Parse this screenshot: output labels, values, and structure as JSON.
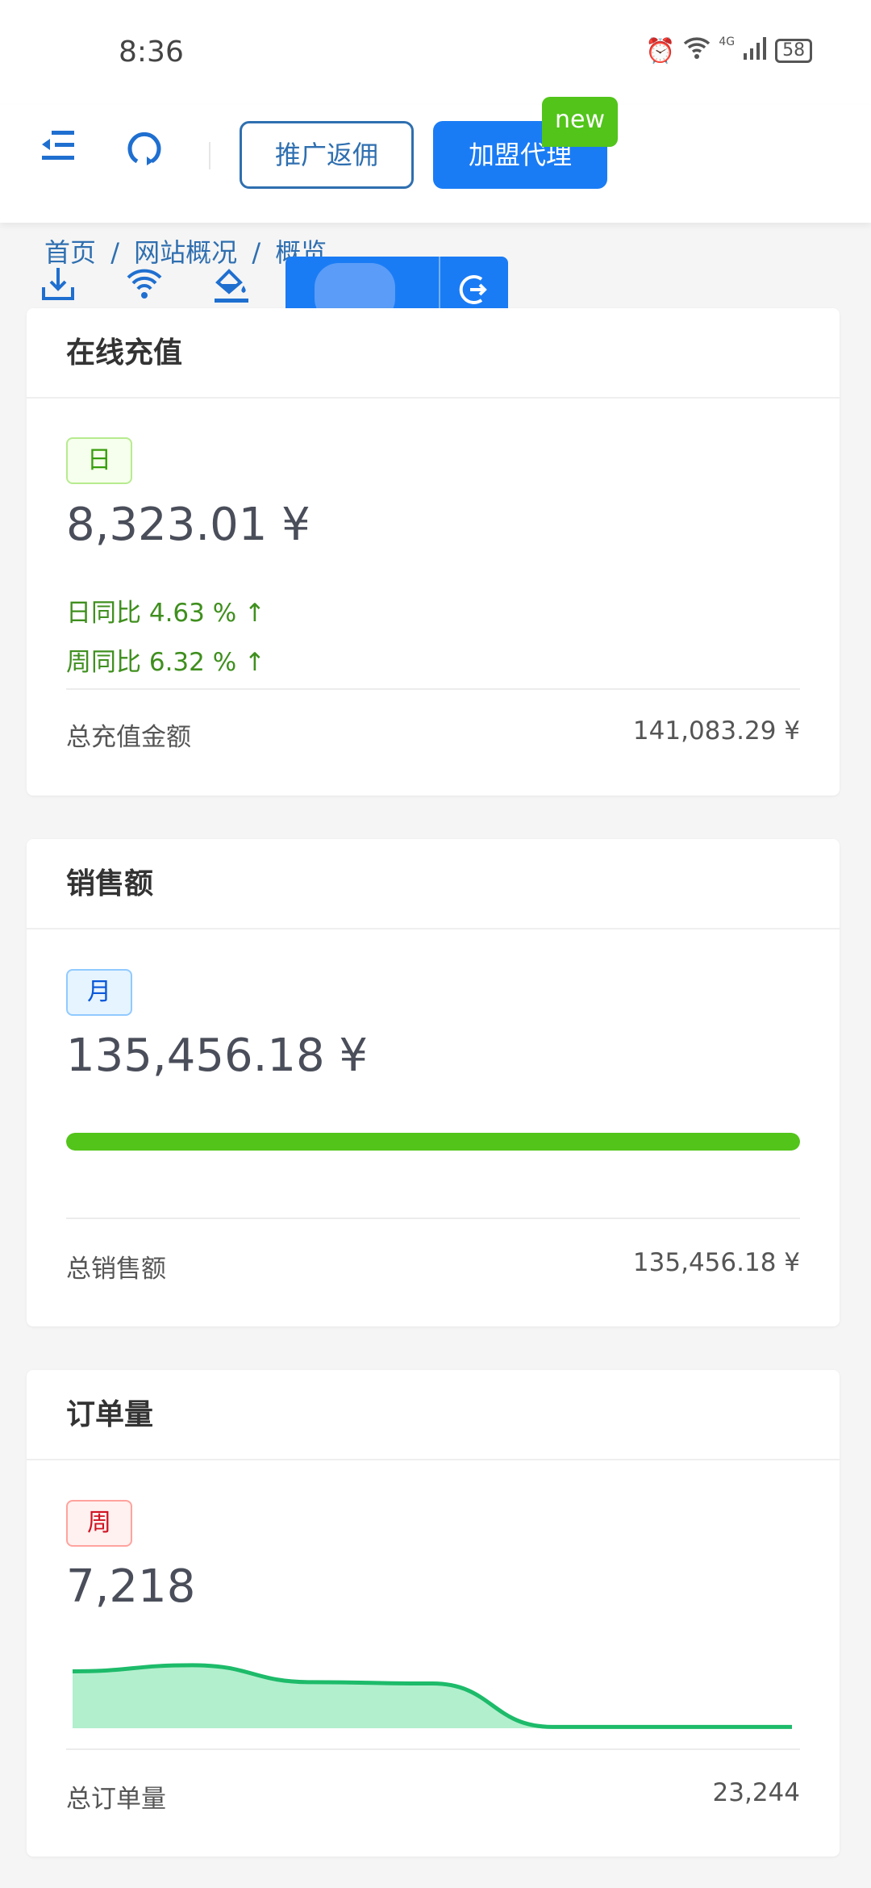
{
  "status_bar": {
    "time": "8:36",
    "battery": "58",
    "network": "4G"
  },
  "header": {
    "promo_button": "推广返佣",
    "join_button": "加盟代理",
    "new_badge": "new"
  },
  "breadcrumb": {
    "items": [
      "首页",
      "网站概况",
      "概览"
    ],
    "separator": "/"
  },
  "colors": {
    "primary": "#1a7cf5",
    "success": "#52c41a",
    "chart_line": "#1dbb6a",
    "chart_fill": "#b2efcd"
  },
  "cards": {
    "recharge": {
      "title": "在线充值",
      "tag": "日",
      "amount": "8,323.01 ¥",
      "day_compare": "日同比 4.63 % ↑",
      "week_compare": "周同比 6.32 % ↑",
      "footer_label": "总充值金额",
      "footer_value": "141,083.29 ¥"
    },
    "sales": {
      "title": "销售额",
      "tag": "月",
      "amount": "135,456.18 ¥",
      "progress_percent": 100,
      "footer_label": "总销售额",
      "footer_value": "135,456.18 ¥"
    },
    "orders": {
      "title": "订单量",
      "tag": "周",
      "amount": "7,218",
      "footer_label": "总订单量",
      "footer_value": "23,244"
    }
  },
  "chart_data": {
    "type": "area",
    "values": [
      0.84,
      0.93,
      0.68,
      0.66,
      0.02,
      0.02,
      0.02
    ],
    "ylim": [
      0,
      1
    ],
    "grid": false
  }
}
